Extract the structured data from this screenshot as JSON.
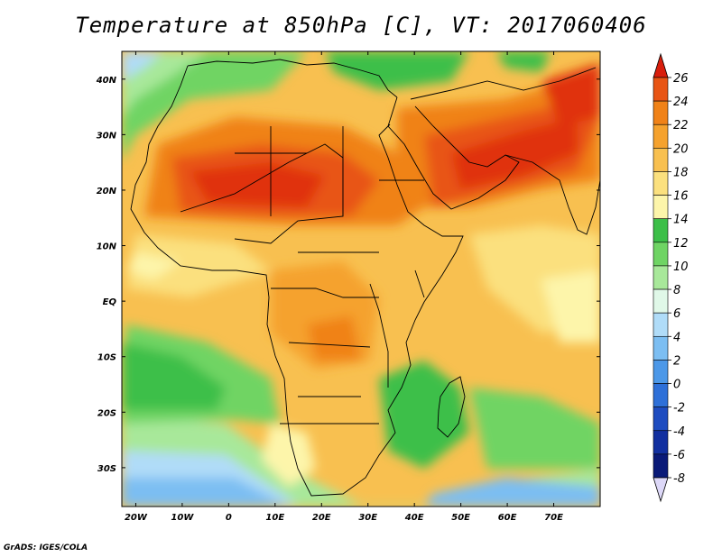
{
  "title": "Temperature at 850hPa [C], VT: 2017060406",
  "credit": "GrADS: IGES/COLA",
  "map": {
    "lon_range": [
      -23,
      80
    ],
    "lat_range": [
      -37,
      45
    ],
    "lat_ticks": [
      {
        "value": 40,
        "label": "40N"
      },
      {
        "value": 30,
        "label": "30N"
      },
      {
        "value": 20,
        "label": "20N"
      },
      {
        "value": 10,
        "label": "10N"
      },
      {
        "value": 0,
        "label": "EQ"
      },
      {
        "value": -10,
        "label": "10S"
      },
      {
        "value": -20,
        "label": "20S"
      },
      {
        "value": -30,
        "label": "30S"
      }
    ],
    "lon_ticks": [
      {
        "value": -20,
        "label": "20W"
      },
      {
        "value": -10,
        "label": "10W"
      },
      {
        "value": 0,
        "label": "0"
      },
      {
        "value": 10,
        "label": "10E"
      },
      {
        "value": 20,
        "label": "20E"
      },
      {
        "value": 30,
        "label": "30E"
      },
      {
        "value": 40,
        "label": "40E"
      },
      {
        "value": 50,
        "label": "50E"
      },
      {
        "value": 60,
        "label": "60E"
      },
      {
        "value": 70,
        "label": "70E"
      }
    ]
  },
  "colorbar": {
    "units": "C",
    "levels": [
      {
        "value": 26,
        "label": "26",
        "color": "#e03010"
      },
      {
        "value": 24,
        "label": "24",
        "color": "#e85515"
      },
      {
        "value": 22,
        "label": "22",
        "color": "#f08218"
      },
      {
        "value": 20,
        "label": "20",
        "color": "#f5a22e"
      },
      {
        "value": 18,
        "label": "18",
        "color": "#f8c050"
      },
      {
        "value": 16,
        "label": "16",
        "color": "#fbe07e"
      },
      {
        "value": 14,
        "label": "14",
        "color": "#fdf5aa"
      },
      {
        "value": 12,
        "label": "12",
        "color": "#3cbf48"
      },
      {
        "value": 10,
        "label": "10",
        "color": "#6fd464"
      },
      {
        "value": 8,
        "label": "8",
        "color": "#a8e89a"
      },
      {
        "value": 6,
        "label": "6",
        "color": "#e0f8e8"
      },
      {
        "value": 4,
        "label": "4",
        "color": "#b0dcf8"
      },
      {
        "value": 2,
        "label": "2",
        "color": "#7cbef2"
      },
      {
        "value": 0,
        "label": "0",
        "color": "#4c98e8"
      },
      {
        "value": -2,
        "label": "-2",
        "color": "#2e70d8"
      },
      {
        "value": -4,
        "label": "-4",
        "color": "#1e4cc0"
      },
      {
        "value": -6,
        "label": "-6",
        "color": "#1230a0"
      },
      {
        "value": -8,
        "label": "-8",
        "color": "#0a1a78"
      }
    ],
    "over_color": "#d81e0c",
    "under_color": "#ddd8f8"
  }
}
